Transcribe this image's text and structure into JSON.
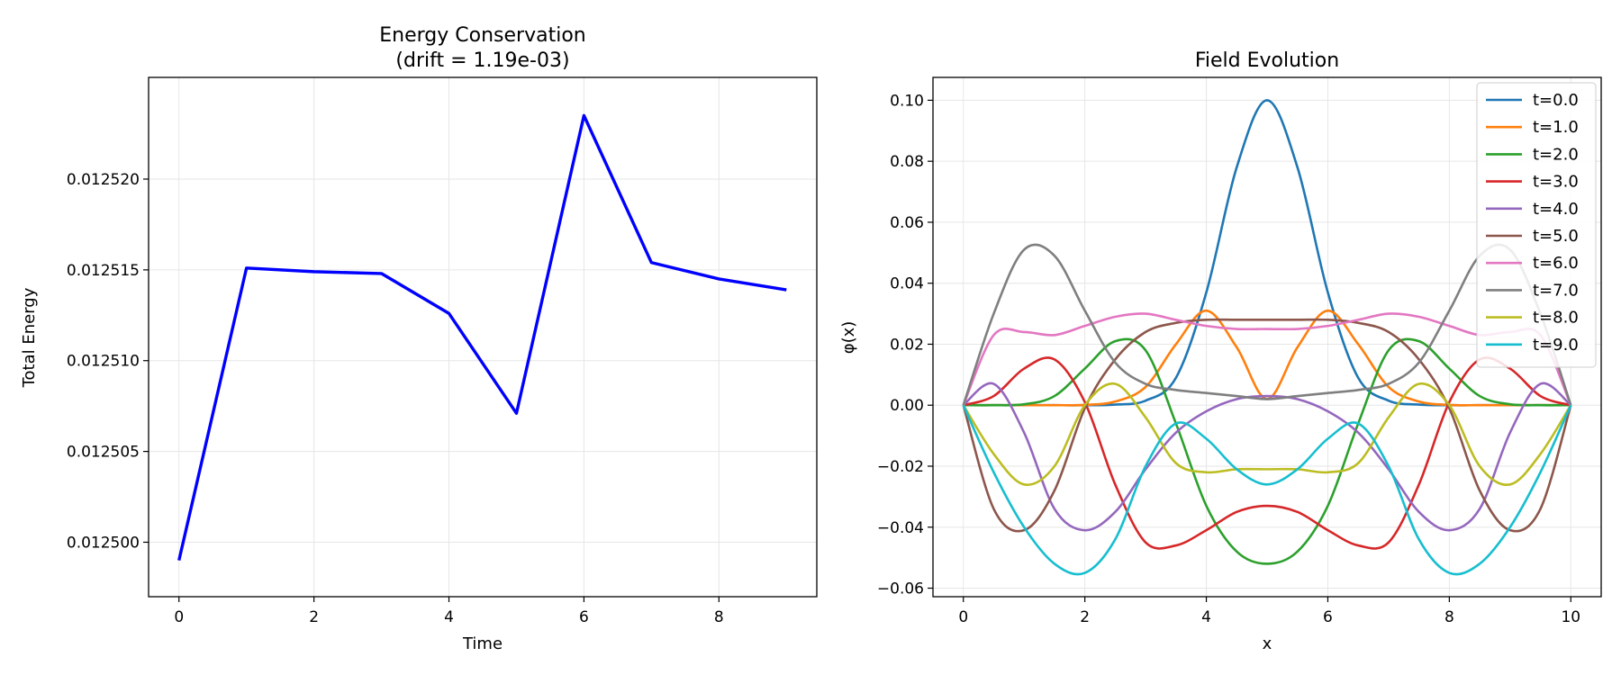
{
  "figure": {
    "panels": [
      {
        "title_lines": [
          "Energy Conservation",
          "(drift = 1.19e-03)"
        ],
        "xlabel": "Time",
        "ylabel": "Total Energy"
      },
      {
        "title_lines": [
          "Field Evolution"
        ],
        "xlabel": "x",
        "ylabel": "φ(x)"
      }
    ]
  },
  "chart_data": [
    {
      "type": "line",
      "title": "Energy Conservation\n(drift = 1.19e-03)",
      "xlabel": "Time",
      "ylabel": "Total Energy",
      "xlim": [
        -0.45,
        9.45
      ],
      "ylim": [
        0.012497,
        0.0125256
      ],
      "xticks": [
        0,
        2,
        4,
        6,
        8
      ],
      "xtick_labels": [
        "0",
        "2",
        "4",
        "6",
        "8"
      ],
      "yticks": [
        0.0125,
        0.012505,
        0.01251,
        0.012515,
        0.01252
      ],
      "ytick_labels": [
        "0.012500",
        "0.012505",
        "0.012510",
        "0.012515",
        "0.012520"
      ],
      "grid": true,
      "x": [
        0,
        1,
        2,
        3,
        4,
        5,
        6,
        7,
        8,
        9
      ],
      "series": [
        {
          "color": "#0000ff",
          "values": [
            0.012499,
            0.0125151,
            0.0125149,
            0.0125148,
            0.0125126,
            0.0125071,
            0.0125235,
            0.0125154,
            0.0125145,
            0.0125139
          ]
        }
      ]
    },
    {
      "type": "line",
      "title": "Field Evolution",
      "xlabel": "x",
      "ylabel": "φ(x)",
      "xlim": [
        -0.5,
        10.5
      ],
      "ylim": [
        -0.0628,
        0.1075
      ],
      "xticks": [
        0,
        2,
        4,
        6,
        8,
        10
      ],
      "xtick_labels": [
        "0",
        "2",
        "4",
        "6",
        "8",
        "10"
      ],
      "yticks": [
        -0.06,
        -0.04,
        -0.02,
        0.0,
        0.02,
        0.04,
        0.06,
        0.08,
        0.1
      ],
      "ytick_labels": [
        "−0.06",
        "−0.04",
        "−0.02",
        "0.00",
        "0.02",
        "0.04",
        "0.06",
        "0.08",
        "0.10"
      ],
      "grid": true,
      "legend_position": "top-right",
      "x": [
        0,
        0.5,
        1,
        1.5,
        2,
        2.5,
        3,
        3.5,
        4,
        4.5,
        5,
        5.5,
        6,
        6.5,
        7,
        7.5,
        8,
        8.5,
        9,
        9.5,
        10
      ],
      "series": [
        {
          "name": "t=0.0",
          "color": "#1f77b4",
          "values": [
            0.0,
            0.0,
            0.0,
            0.0,
            0.0,
            0.0002,
            0.0015,
            0.009,
            0.037,
            0.078,
            0.1,
            0.078,
            0.037,
            0.009,
            0.0015,
            0.0002,
            0.0,
            0.0,
            0.0,
            0.0,
            0.0
          ]
        },
        {
          "name": "t=1.0",
          "color": "#ff7f0e",
          "values": [
            0.0,
            0.0,
            0.0,
            0.0,
            0.0001,
            0.0012,
            0.006,
            0.02,
            0.031,
            0.019,
            0.002,
            0.019,
            0.031,
            0.02,
            0.006,
            0.0012,
            0.0001,
            0.0,
            0.0,
            0.0,
            0.0
          ]
        },
        {
          "name": "t=2.0",
          "color": "#2ca02c",
          "values": [
            0.0,
            0.0,
            0.0003,
            0.003,
            0.012,
            0.021,
            0.018,
            -0.006,
            -0.033,
            -0.048,
            -0.052,
            -0.048,
            -0.033,
            -0.006,
            0.018,
            0.021,
            0.012,
            0.003,
            0.0003,
            0.0,
            0.0
          ]
        },
        {
          "name": "t=3.0",
          "color": "#d62728",
          "values": [
            0.0,
            0.003,
            0.012,
            0.015,
            0.001,
            -0.026,
            -0.045,
            -0.046,
            -0.041,
            -0.035,
            -0.033,
            -0.035,
            -0.041,
            -0.046,
            -0.045,
            -0.026,
            0.001,
            0.015,
            0.012,
            0.003,
            0.0
          ]
        },
        {
          "name": "t=4.0",
          "color": "#9467bd",
          "values": [
            0.0,
            0.007,
            -0.009,
            -0.034,
            -0.041,
            -0.035,
            -0.021,
            -0.009,
            -0.002,
            0.002,
            0.003,
            0.002,
            -0.002,
            -0.009,
            -0.021,
            -0.035,
            -0.041,
            -0.034,
            -0.009,
            0.007,
            0.0
          ]
        },
        {
          "name": "t=5.0",
          "color": "#8c564b",
          "values": [
            0.0,
            -0.034,
            -0.041,
            -0.028,
            -0.001,
            0.015,
            0.024,
            0.027,
            0.028,
            0.028,
            0.028,
            0.028,
            0.028,
            0.027,
            0.024,
            0.015,
            -0.001,
            -0.028,
            -0.041,
            -0.034,
            0.0
          ]
        },
        {
          "name": "t=6.0",
          "color": "#e377c2",
          "values": [
            0.0,
            0.023,
            0.024,
            0.023,
            0.026,
            0.029,
            0.03,
            0.028,
            0.026,
            0.025,
            0.025,
            0.025,
            0.026,
            0.028,
            0.03,
            0.029,
            0.026,
            0.023,
            0.024,
            0.023,
            0.0
          ]
        },
        {
          "name": "t=7.0",
          "color": "#7f7f7f",
          "values": [
            0.0,
            0.03,
            0.051,
            0.049,
            0.031,
            0.014,
            0.007,
            0.005,
            0.004,
            0.003,
            0.002,
            0.003,
            0.004,
            0.005,
            0.007,
            0.014,
            0.031,
            0.049,
            0.051,
            0.03,
            0.0
          ]
        },
        {
          "name": "t=8.0",
          "color": "#bcbd22",
          "values": [
            0.0,
            -0.016,
            -0.026,
            -0.02,
            0.0,
            0.007,
            -0.004,
            -0.019,
            -0.022,
            -0.021,
            -0.021,
            -0.021,
            -0.022,
            -0.019,
            -0.004,
            0.007,
            0.0,
            -0.02,
            -0.026,
            -0.016,
            0.0
          ]
        },
        {
          "name": "t=9.0",
          "color": "#17becf",
          "values": [
            0.0,
            -0.022,
            -0.04,
            -0.052,
            -0.055,
            -0.044,
            -0.02,
            -0.006,
            -0.011,
            -0.021,
            -0.026,
            -0.021,
            -0.011,
            -0.006,
            -0.02,
            -0.044,
            -0.055,
            -0.052,
            -0.04,
            -0.022,
            0.0
          ]
        }
      ]
    }
  ]
}
